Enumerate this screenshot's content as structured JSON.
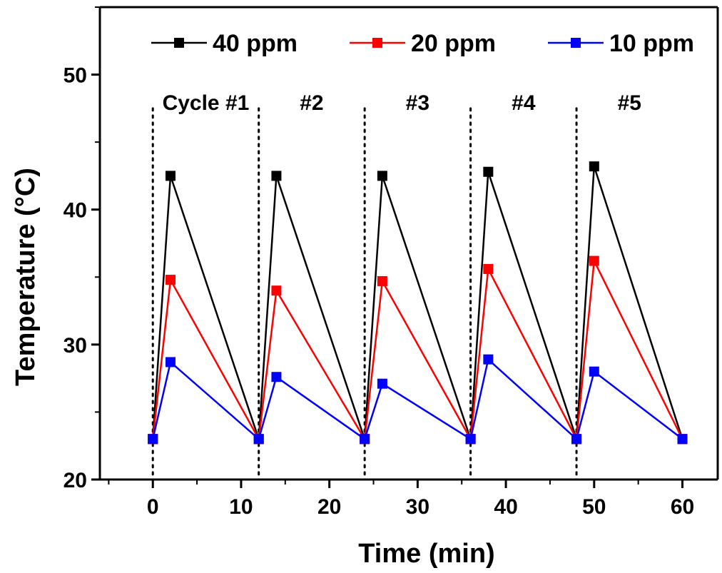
{
  "chart_data": {
    "type": "line",
    "title": "",
    "xlabel": "Time (min)",
    "ylabel": "Temperature (°C)",
    "xlim": [
      -6,
      64
    ],
    "ylim": [
      20,
      55
    ],
    "x_ticks": [
      0,
      10,
      20,
      30,
      40,
      50,
      60
    ],
    "y_ticks": [
      20,
      30,
      40,
      50
    ],
    "x_tick_labels": [
      "0",
      "10",
      "20",
      "30",
      "40",
      "50",
      "60"
    ],
    "y_tick_labels": [
      "20",
      "30",
      "40",
      "50"
    ],
    "grid": false,
    "legend_position": "top",
    "cycle_boundaries": [
      0,
      12,
      24,
      36,
      48
    ],
    "annotations": [
      "Cycle #1",
      "#2",
      "#3",
      "#4",
      "#5"
    ],
    "series": [
      {
        "name": "40 ppm",
        "color": "#000000",
        "x": [
          0,
          2,
          12,
          14,
          24,
          26,
          36,
          38,
          48,
          50,
          60
        ],
        "y": [
          23.0,
          42.5,
          23.0,
          42.5,
          23.0,
          42.5,
          23.0,
          42.8,
          23.0,
          43.2,
          23.0
        ]
      },
      {
        "name": "20 ppm",
        "color": "#ff0000",
        "x": [
          0,
          2,
          12,
          14,
          24,
          26,
          36,
          38,
          48,
          50,
          60
        ],
        "y": [
          23.0,
          34.8,
          23.0,
          34.0,
          23.0,
          34.7,
          23.0,
          35.6,
          23.0,
          36.2,
          23.0
        ]
      },
      {
        "name": "10 ppm",
        "color": "#0000ff",
        "x": [
          0,
          2,
          12,
          14,
          24,
          26,
          36,
          38,
          48,
          50,
          60
        ],
        "y": [
          23.0,
          28.7,
          23.0,
          27.6,
          23.0,
          27.1,
          23.0,
          28.9,
          23.0,
          28.0,
          23.0
        ]
      }
    ]
  }
}
